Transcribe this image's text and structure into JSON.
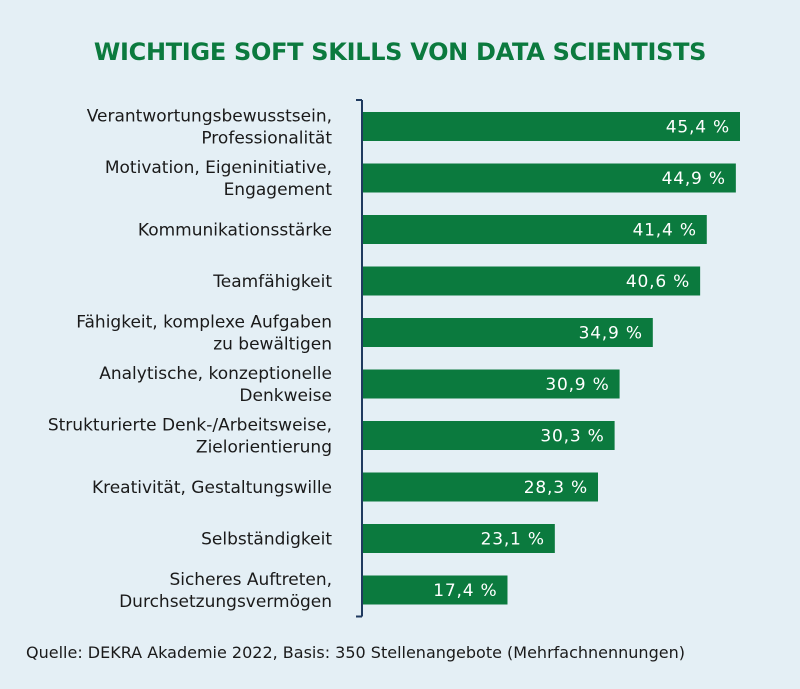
{
  "chart_data": {
    "type": "bar",
    "orientation": "horizontal",
    "title": "WICHTIGE SOFT SKILLS VON DATA SCIENTISTS",
    "categories": [
      [
        "Verantwortungsbewusstsein,",
        "Professionalität"
      ],
      [
        "Motivation, Eigeninitiative,",
        "Engagement"
      ],
      [
        "Kommunikationsstärke"
      ],
      [
        "Teamfähigkeit"
      ],
      [
        "Fähigkeit, komplexe Aufgaben",
        "zu bewältigen"
      ],
      [
        "Analytische, konzeptionelle",
        "Denkweise"
      ],
      [
        "Strukturierte Denk-/Arbeitsweise,",
        "Zielorientierung"
      ],
      [
        "Kreativität, Gestaltungswille"
      ],
      [
        "Selbständigkeit"
      ],
      [
        "Sicheres Auftreten,",
        "Durchsetzungsvermögen"
      ]
    ],
    "values": [
      45.4,
      44.9,
      41.4,
      40.6,
      34.9,
      30.9,
      30.3,
      28.3,
      23.1,
      17.4
    ],
    "value_labels": [
      "45,4 %",
      "44,9 %",
      "41,4 %",
      "40,6 %",
      "34,9 %",
      "30,9 %",
      "30,3 %",
      "28,3 %",
      "23,1 %",
      "17,4 %"
    ],
    "xlim": [
      0,
      45.4
    ],
    "grid": false,
    "legend": "none"
  },
  "source_note": "Quelle: DEKRA Akademie 2022, Basis: 350 Stellenangebote (Mehrfachnennungen)",
  "colors": {
    "background": "#e4eff5",
    "bar": "#0b7a3e",
    "title": "#0b7a3e",
    "axis": "#1f3a5f",
    "label_text": "#1a1a1a",
    "value_text": "#ffffff"
  }
}
